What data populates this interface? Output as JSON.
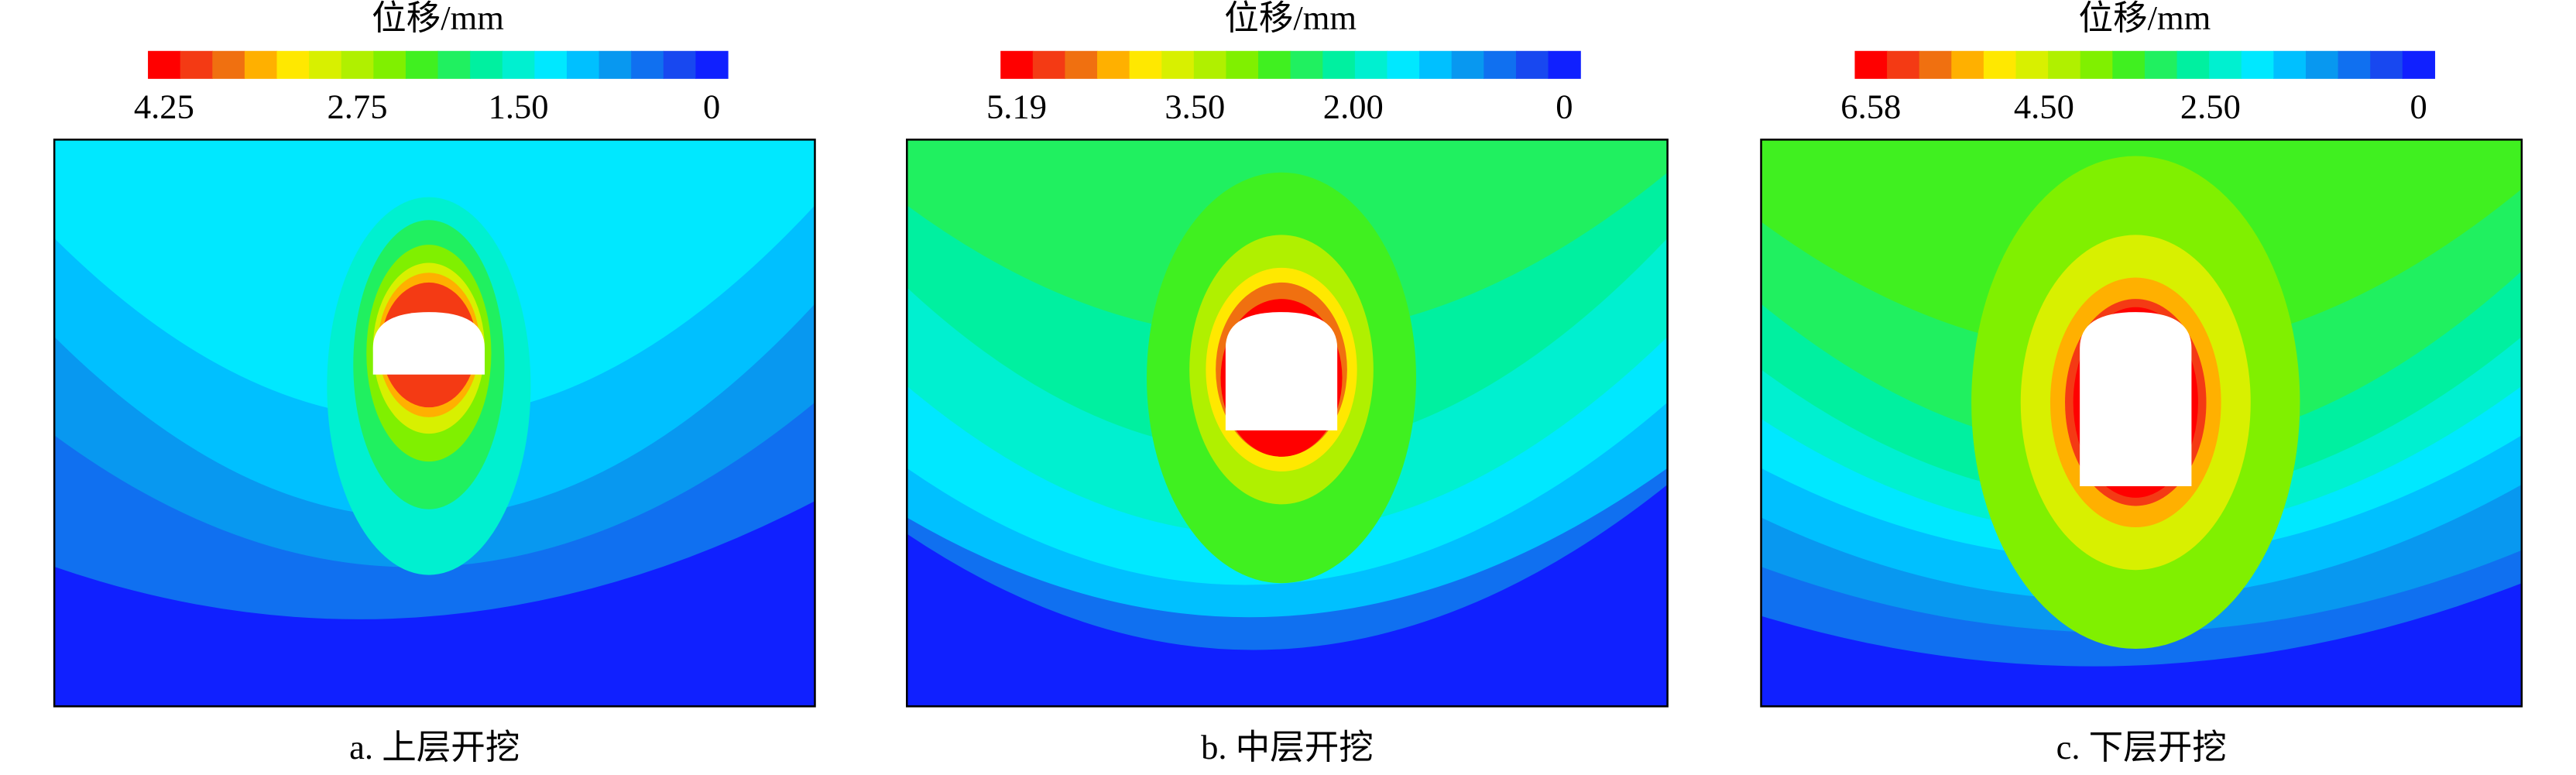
{
  "chart_data": [
    {
      "type": "contour",
      "colorbar_label": "位移/mm",
      "caption": "a. 上层开挖",
      "colors": [
        "#ff0000",
        "#f43a14",
        "#f07010",
        "#ffb000",
        "#ffe800",
        "#d8f000",
        "#b0f000",
        "#80f000",
        "#40f020",
        "#20f060",
        "#00f0a0",
        "#00f0d0",
        "#00e8ff",
        "#00c0ff",
        "#0898f0",
        "#1070f0",
        "#1848f0",
        "#1020ff"
      ],
      "clim": [
        0,
        4.25
      ],
      "ticks": [
        4.25,
        2.75,
        {
          "value": 1.5,
          "label": "1.50"
        },
        0
      ]
    },
    {
      "type": "contour",
      "colorbar_label": "位移/mm",
      "caption": "b. 中层开挖",
      "colors": [
        "#ff0000",
        "#f43a14",
        "#f07010",
        "#ffb000",
        "#ffe800",
        "#d8f000",
        "#b0f000",
        "#80f000",
        "#40f020",
        "#20f060",
        "#00f0a0",
        "#00f0d0",
        "#00e8ff",
        "#00c0ff",
        "#0898f0",
        "#1070f0",
        "#1848f0",
        "#1020ff"
      ],
      "clim": [
        0,
        5.19
      ],
      "ticks": [
        5.19,
        {
          "value": 3.5,
          "label": "3.50"
        },
        {
          "value": 2,
          "label": "2.00"
        },
        0
      ]
    },
    {
      "type": "contour",
      "colorbar_label": "位移/mm",
      "caption": "c. 下层开挖",
      "colors": [
        "#ff0000",
        "#f43a14",
        "#f07010",
        "#ffb000",
        "#ffe800",
        "#d8f000",
        "#b0f000",
        "#80f000",
        "#40f020",
        "#20f060",
        "#00f0a0",
        "#00f0d0",
        "#00e8ff",
        "#00c0ff",
        "#0898f0",
        "#1070f0",
        "#1848f0",
        "#1020ff"
      ],
      "clim": [
        0,
        6.58
      ],
      "ticks": [
        6.58,
        {
          "value": 4.5,
          "label": "4.50"
        },
        {
          "value": 2.5,
          "label": "2.50"
        },
        0
      ]
    }
  ]
}
